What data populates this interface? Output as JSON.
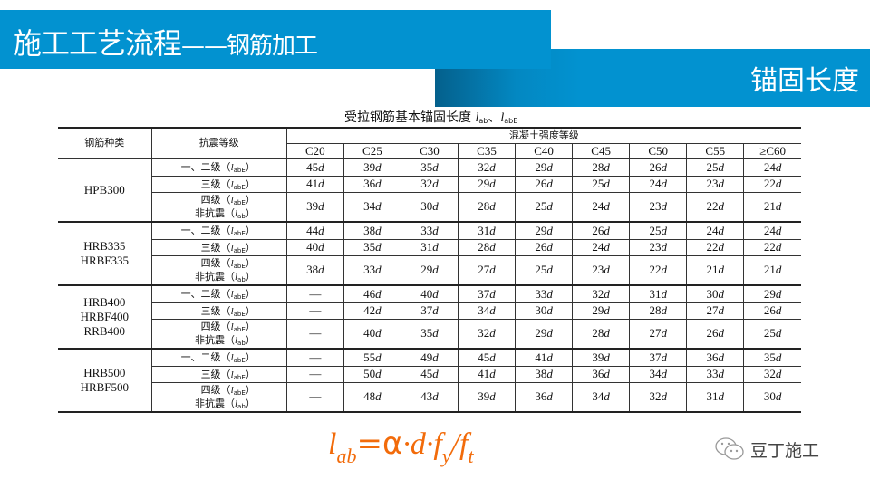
{
  "header": {
    "title": "施工工艺流程",
    "title_sep": "——",
    "title_sub": "钢筋加工",
    "section": "锚固长度"
  },
  "table": {
    "caption": "受拉钢筋基本锚固长度",
    "caption_sym1": "l",
    "caption_sub1": "ab",
    "caption_sep": "、",
    "caption_sym2": "l",
    "caption_sub2": "abE",
    "col_grade": "钢筋种类",
    "col_seismic": "抗震等级",
    "col_concrete": "混凝土强度等级",
    "concrete_grades": [
      "C20",
      "C25",
      "C30",
      "C35",
      "C40",
      "C45",
      "C50",
      "C55",
      "≥C60"
    ],
    "groups": [
      {
        "name": [
          "HPB300"
        ],
        "rows": [
          {
            "label": [
              {
                "text": "一、二级（",
                "sub": "abE"
              }
            ],
            "values": [
              "45d",
              "39d",
              "35d",
              "32d",
              "29d",
              "28d",
              "26d",
              "25d",
              "24d"
            ]
          },
          {
            "label": [
              {
                "text": "三级（",
                "sub": "abE"
              }
            ],
            "values": [
              "41d",
              "36d",
              "32d",
              "29d",
              "26d",
              "25d",
              "24d",
              "23d",
              "22d"
            ]
          },
          {
            "label": [
              {
                "text": "四级（",
                "sub": "abE"
              },
              {
                "text": "非抗震（",
                "sub": "ab"
              }
            ],
            "values": [
              "39d",
              "34d",
              "30d",
              "28d",
              "25d",
              "24d",
              "23d",
              "22d",
              "21d"
            ]
          }
        ]
      },
      {
        "name": [
          "HRB335",
          "HRBF335"
        ],
        "rows": [
          {
            "label": [
              {
                "text": "一、二级（",
                "sub": "abE"
              }
            ],
            "values": [
              "44d",
              "38d",
              "33d",
              "31d",
              "29d",
              "26d",
              "25d",
              "24d",
              "24d"
            ]
          },
          {
            "label": [
              {
                "text": "三级（",
                "sub": "abE"
              }
            ],
            "values": [
              "40d",
              "35d",
              "31d",
              "28d",
              "26d",
              "24d",
              "23d",
              "22d",
              "22d"
            ]
          },
          {
            "label": [
              {
                "text": "四级（",
                "sub": "abE"
              },
              {
                "text": "非抗震（",
                "sub": "ab"
              }
            ],
            "values": [
              "38d",
              "33d",
              "29d",
              "27d",
              "25d",
              "23d",
              "22d",
              "21d",
              "21d"
            ]
          }
        ]
      },
      {
        "name": [
          "HRB400",
          "HRBF400",
          "RRB400"
        ],
        "rows": [
          {
            "label": [
              {
                "text": "一、二级（",
                "sub": "abE"
              }
            ],
            "values": [
              "—",
              "46d",
              "40d",
              "37d",
              "33d",
              "32d",
              "31d",
              "30d",
              "29d"
            ]
          },
          {
            "label": [
              {
                "text": "三级（",
                "sub": "abE"
              }
            ],
            "values": [
              "—",
              "42d",
              "37d",
              "34d",
              "30d",
              "29d",
              "28d",
              "27d",
              "26d"
            ]
          },
          {
            "label": [
              {
                "text": "四级（",
                "sub": "abE"
              },
              {
                "text": "非抗震（",
                "sub": "ab"
              }
            ],
            "values": [
              "—",
              "40d",
              "35d",
              "32d",
              "29d",
              "28d",
              "27d",
              "26d",
              "25d"
            ]
          }
        ]
      },
      {
        "name": [
          "HRB500",
          "HRBF500"
        ],
        "rows": [
          {
            "label": [
              {
                "text": "一、二级（",
                "sub": "abE"
              }
            ],
            "values": [
              "—",
              "55d",
              "49d",
              "45d",
              "41d",
              "39d",
              "37d",
              "36d",
              "35d"
            ]
          },
          {
            "label": [
              {
                "text": "三级（",
                "sub": "abE"
              }
            ],
            "values": [
              "—",
              "50d",
              "45d",
              "41d",
              "38d",
              "36d",
              "34d",
              "33d",
              "32d"
            ]
          },
          {
            "label": [
              {
                "text": "四级（",
                "sub": "abE"
              },
              {
                "text": "非抗震（",
                "sub": "ab"
              }
            ],
            "values": [
              "—",
              "48d",
              "43d",
              "39d",
              "36d",
              "34d",
              "32d",
              "31d",
              "30d"
            ]
          }
        ]
      }
    ]
  },
  "formula": {
    "l": "l",
    "l_sub": "ab",
    "eq": "=",
    "alpha": "α",
    "rest1": "·d·f",
    "fy_sub": "y",
    "slash": "/f",
    "ft_sub": "t"
  },
  "watermark": {
    "text": "豆丁施工",
    "icon": "wechat-icon"
  },
  "colors": {
    "banner": "#0292d0",
    "formula": "#f26b0a"
  }
}
